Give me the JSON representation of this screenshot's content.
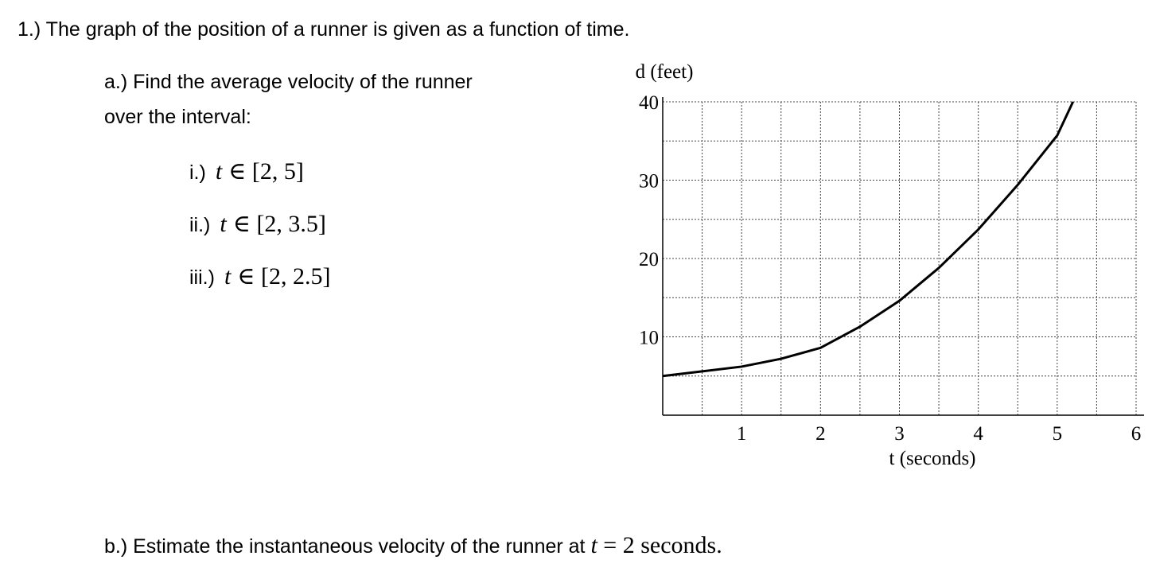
{
  "question": {
    "title": "1.) The graph of the position of a runner is given as a function of time.",
    "part_a": {
      "lines": [
        "a.) Find the average velocity of the runner",
        "over the interval:"
      ],
      "items": [
        {
          "label": "i.)",
          "var": "t",
          "expr": "∈ [2, 5]"
        },
        {
          "label": "ii.)",
          "var": "t",
          "expr": "∈ [2, 3.5]"
        },
        {
          "label": "iii.)",
          "var": "t",
          "expr": "∈ [2, 2.5]"
        }
      ]
    },
    "part_b": {
      "before": "b.) Estimate the instantaneous velocity of the runner at ",
      "var": "t",
      "after": " = 2 seconds."
    }
  },
  "chart_data": {
    "type": "line",
    "y_label": "d (feet)",
    "x_label": "t (seconds)",
    "x": [
      0,
      0.5,
      1,
      1.5,
      2,
      2.5,
      3,
      3.5,
      4,
      4.5,
      5,
      5.2
    ],
    "series": [
      {
        "name": null,
        "color": "#000000",
        "values": [
          5,
          5.6,
          6.2,
          7.2,
          8.6,
          11.3,
          14.6,
          18.8,
          23.7,
          29.4,
          35.7,
          40
        ]
      }
    ],
    "xlim": [
      0,
      6
    ],
    "ylim": [
      0,
      40
    ],
    "xticks": [
      1,
      2,
      3,
      4,
      5,
      6
    ],
    "yticks": [
      10,
      20,
      30,
      40
    ],
    "grid": true
  }
}
